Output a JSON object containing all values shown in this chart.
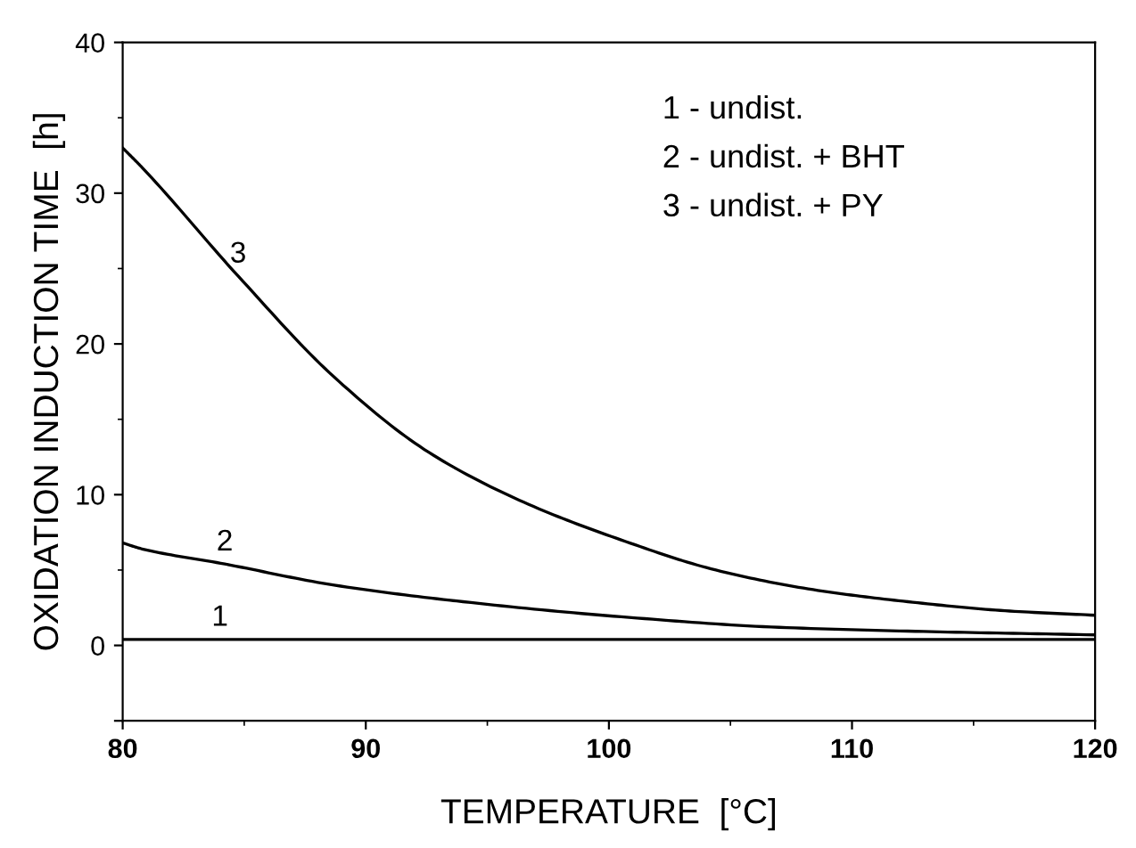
{
  "chart_data": {
    "type": "line",
    "xlabel": "TEMPERATURE  [°C]",
    "ylabel": "OXIDATION INDUCTION TIME  [h]",
    "xlim": [
      80,
      120
    ],
    "xticks": [
      80,
      90,
      100,
      110,
      120
    ],
    "ylim": [
      -5,
      40
    ],
    "yticks": [
      {
        "value": -5,
        "label": null
      },
      0,
      10,
      20,
      30,
      40
    ],
    "grid": false,
    "legend": false,
    "marker": "none",
    "line_style": "solid",
    "series": [
      {
        "color": "#000000",
        "x": [
          80,
          84,
          120
        ],
        "values": [
          0.4,
          0.4,
          0.4
        ]
      },
      {
        "color": "#000000",
        "x": [
          80,
          80.8,
          84.2,
          88.7,
          94,
          100.5,
          107,
          113.6,
          120
        ],
        "values": [
          6.8,
          6.4,
          5.4,
          4.0,
          2.9,
          1.9,
          1.2,
          0.9,
          0.7
        ]
      },
      {
        "color": "#000000",
        "x": [
          80,
          80.8,
          84.75,
          88.7,
          92.6,
          96.5,
          100.5,
          104.4,
          108.4,
          112.3,
          116.3,
          120
        ],
        "values": [
          33,
          31.7,
          24.5,
          17.8,
          12.8,
          9.5,
          7.0,
          5.0,
          3.7,
          2.9,
          2.3,
          2.0
        ]
      }
    ],
    "annotations": [
      {
        "text": "1",
        "x": 84,
        "y": 0.4
      },
      {
        "text": "2",
        "x": 84.2,
        "y": 5.4
      },
      {
        "text": "3",
        "x": 84.75,
        "y": 24.5
      },
      "1 - undist.",
      "2 - undist. + BHT",
      "3 - undist. + PY"
    ]
  }
}
